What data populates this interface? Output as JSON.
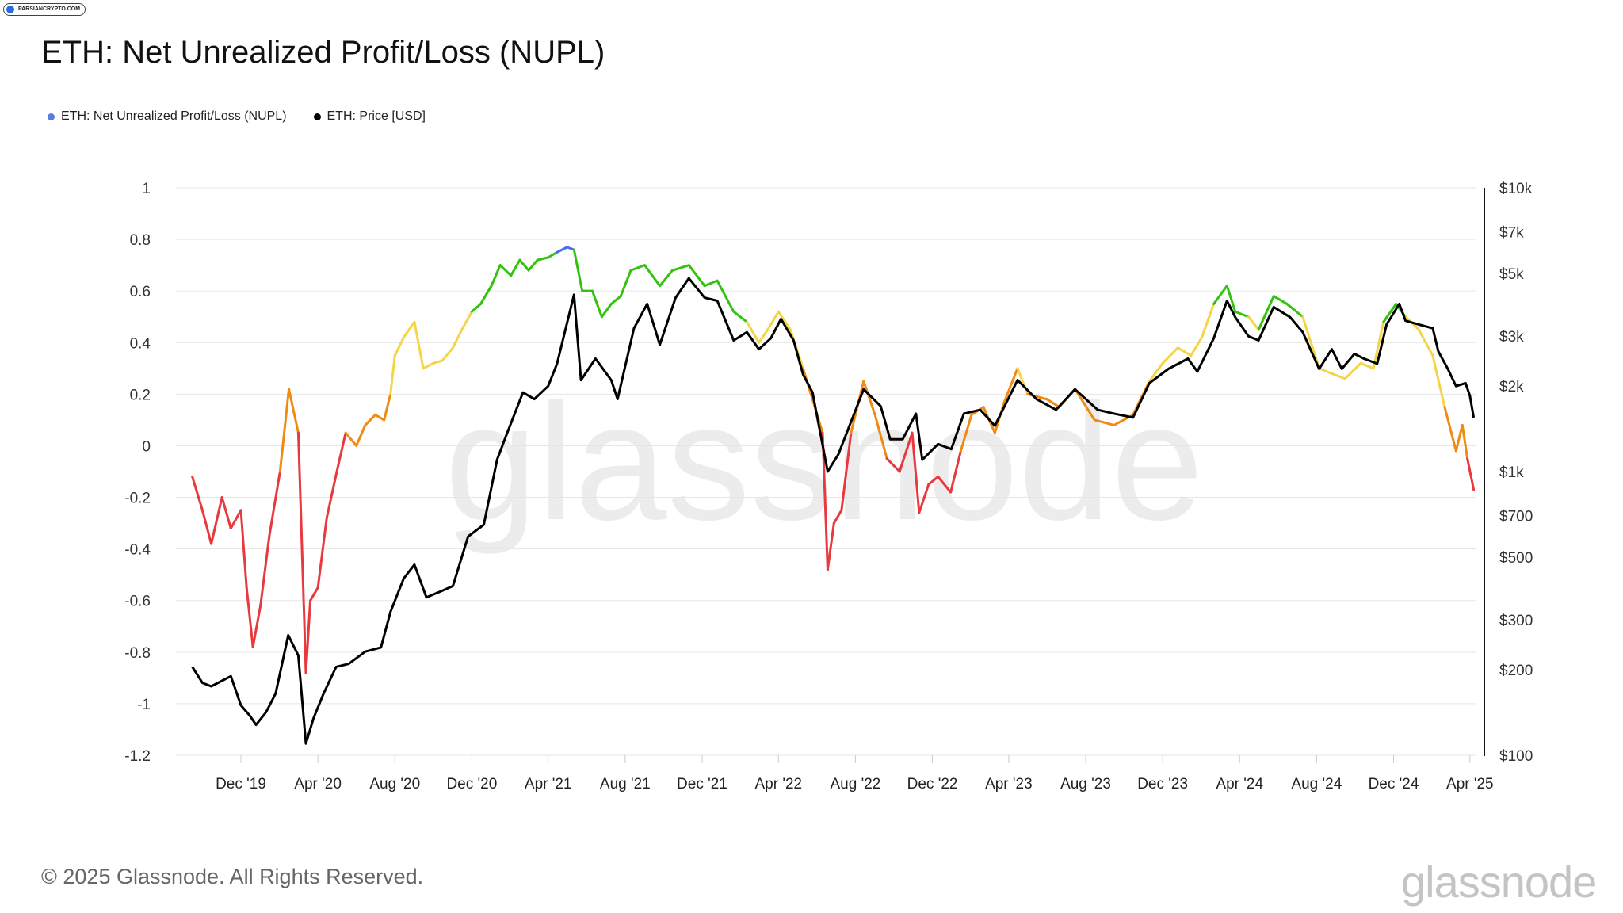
{
  "badge": {
    "label": "PARSIANCRYPTO.COM"
  },
  "title": "ETH: Net Unrealized Profit/Loss (NUPL)",
  "legend": [
    {
      "label": "ETH: Net Unrealized Profit/Loss (NUPL)",
      "color": "#5b7be0"
    },
    {
      "label": "ETH: Price [USD]",
      "color": "#000000"
    }
  ],
  "watermark": "glassnode",
  "footer": {
    "copyright": "© 2025 Glassnode. All Rights Reserved.",
    "logo": "glassnode"
  },
  "colors": {
    "red": "#e8393e",
    "orange": "#f08a12",
    "yellow": "#f5d547",
    "green": "#33c30e",
    "blue": "#4b6fe8",
    "price": "#000000"
  },
  "chart_data": {
    "type": "line",
    "title": "ETH: Net Unrealized Profit/Loss (NUPL)",
    "grid": true,
    "x_ticks": [
      "Dec '19",
      "Apr '20",
      "Aug '20",
      "Dec '20",
      "Apr '21",
      "Aug '21",
      "Dec '21",
      "Apr '22",
      "Aug '22",
      "Dec '22",
      "Apr '23",
      "Aug '23",
      "Dec '23",
      "Apr '24",
      "Aug '24",
      "Dec '24",
      "Apr '25"
    ],
    "y_left": {
      "ticks": [
        "1",
        "0.8",
        "0.6",
        "0.4",
        "0.2",
        "0",
        "-0.2",
        "-0.4",
        "-0.6",
        "-0.8",
        "-1",
        "-1.2"
      ],
      "range": [
        -1.2,
        1
      ]
    },
    "y_right": {
      "scale": "log",
      "ticks": [
        "$10k",
        "$7k",
        "$5k",
        "$3k",
        "$2k",
        "$1k",
        "$700",
        "$500",
        "$300",
        "$200",
        "$100"
      ],
      "range": [
        100,
        10000
      ]
    },
    "series": [
      {
        "name": "ETH: Net Unrealized Profit/Loss (NUPL)",
        "axis": "left",
        "color_bands": [
          {
            "range": [
              -1.2,
              0
            ],
            "color": "red"
          },
          {
            "range": [
              0,
              0.25
            ],
            "color": "orange"
          },
          {
            "range": [
              0.25,
              0.5
            ],
            "color": "yellow"
          },
          {
            "range": [
              0.5,
              0.75
            ],
            "color": "green"
          },
          {
            "range": [
              0.75,
              1
            ],
            "color": "blue"
          }
        ],
        "points": [
          [
            "2019-09-15",
            -0.12
          ],
          [
            "2019-10-01",
            -0.25
          ],
          [
            "2019-10-15",
            -0.38
          ],
          [
            "2019-11-01",
            -0.2
          ],
          [
            "2019-11-15",
            -0.32
          ],
          [
            "2019-12-01",
            -0.25
          ],
          [
            "2019-12-10",
            -0.55
          ],
          [
            "2019-12-20",
            -0.78
          ],
          [
            "2020-01-01",
            -0.62
          ],
          [
            "2020-01-15",
            -0.35
          ],
          [
            "2020-02-01",
            -0.1
          ],
          [
            "2020-02-15",
            0.22
          ],
          [
            "2020-03-01",
            0.05
          ],
          [
            "2020-03-13",
            -0.88
          ],
          [
            "2020-03-20",
            -0.6
          ],
          [
            "2020-04-01",
            -0.55
          ],
          [
            "2020-04-15",
            -0.28
          ],
          [
            "2020-05-01",
            -0.1
          ],
          [
            "2020-05-15",
            0.05
          ],
          [
            "2020-06-01",
            0.0
          ],
          [
            "2020-06-15",
            0.08
          ],
          [
            "2020-07-01",
            0.12
          ],
          [
            "2020-07-15",
            0.1
          ],
          [
            "2020-07-25",
            0.2
          ],
          [
            "2020-08-01",
            0.35
          ],
          [
            "2020-08-15",
            0.42
          ],
          [
            "2020-09-01",
            0.48
          ],
          [
            "2020-09-15",
            0.3
          ],
          [
            "2020-10-01",
            0.32
          ],
          [
            "2020-10-15",
            0.33
          ],
          [
            "2020-11-01",
            0.38
          ],
          [
            "2020-11-15",
            0.45
          ],
          [
            "2020-12-01",
            0.52
          ],
          [
            "2020-12-15",
            0.55
          ],
          [
            "2021-01-01",
            0.62
          ],
          [
            "2021-01-15",
            0.7
          ],
          [
            "2021-02-01",
            0.66
          ],
          [
            "2021-02-15",
            0.72
          ],
          [
            "2021-03-01",
            0.68
          ],
          [
            "2021-03-15",
            0.72
          ],
          [
            "2021-04-01",
            0.73
          ],
          [
            "2021-04-15",
            0.75
          ],
          [
            "2021-05-01",
            0.77
          ],
          [
            "2021-05-12",
            0.76
          ],
          [
            "2021-05-25",
            0.6
          ],
          [
            "2021-06-10",
            0.6
          ],
          [
            "2021-06-25",
            0.5
          ],
          [
            "2021-07-10",
            0.55
          ],
          [
            "2021-07-25",
            0.58
          ],
          [
            "2021-08-10",
            0.68
          ],
          [
            "2021-09-01",
            0.7
          ],
          [
            "2021-09-25",
            0.62
          ],
          [
            "2021-10-15",
            0.68
          ],
          [
            "2021-11-10",
            0.7
          ],
          [
            "2021-12-05",
            0.62
          ],
          [
            "2021-12-25",
            0.64
          ],
          [
            "2022-01-20",
            0.52
          ],
          [
            "2022-02-10",
            0.48
          ],
          [
            "2022-03-01",
            0.4
          ],
          [
            "2022-03-15",
            0.45
          ],
          [
            "2022-04-01",
            0.52
          ],
          [
            "2022-04-20",
            0.45
          ],
          [
            "2022-05-10",
            0.3
          ],
          [
            "2022-05-25",
            0.18
          ],
          [
            "2022-06-10",
            0.05
          ],
          [
            "2022-06-18",
            -0.48
          ],
          [
            "2022-06-28",
            -0.3
          ],
          [
            "2022-07-10",
            -0.25
          ],
          [
            "2022-07-25",
            0.05
          ],
          [
            "2022-08-14",
            0.25
          ],
          [
            "2022-09-01",
            0.12
          ],
          [
            "2022-09-20",
            -0.05
          ],
          [
            "2022-10-10",
            -0.1
          ],
          [
            "2022-10-30",
            0.05
          ],
          [
            "2022-11-10",
            -0.26
          ],
          [
            "2022-11-25",
            -0.15
          ],
          [
            "2022-12-10",
            -0.12
          ],
          [
            "2022-12-30",
            -0.18
          ],
          [
            "2023-01-15",
            -0.02
          ],
          [
            "2023-02-01",
            0.12
          ],
          [
            "2023-02-20",
            0.15
          ],
          [
            "2023-03-10",
            0.05
          ],
          [
            "2023-03-25",
            0.17
          ],
          [
            "2023-04-15",
            0.3
          ],
          [
            "2023-05-01",
            0.2
          ],
          [
            "2023-06-01",
            0.18
          ],
          [
            "2023-06-20",
            0.15
          ],
          [
            "2023-07-15",
            0.22
          ],
          [
            "2023-08-15",
            0.1
          ],
          [
            "2023-09-15",
            0.08
          ],
          [
            "2023-10-15",
            0.12
          ],
          [
            "2023-11-10",
            0.25
          ],
          [
            "2023-12-01",
            0.32
          ],
          [
            "2023-12-25",
            0.38
          ],
          [
            "2024-01-15",
            0.35
          ],
          [
            "2024-02-01",
            0.42
          ],
          [
            "2024-02-20",
            0.55
          ],
          [
            "2024-03-12",
            0.62
          ],
          [
            "2024-03-25",
            0.52
          ],
          [
            "2024-04-15",
            0.5
          ],
          [
            "2024-05-01",
            0.45
          ],
          [
            "2024-05-25",
            0.58
          ],
          [
            "2024-06-15",
            0.55
          ],
          [
            "2024-07-10",
            0.5
          ],
          [
            "2024-08-05",
            0.3
          ],
          [
            "2024-08-25",
            0.28
          ],
          [
            "2024-09-15",
            0.26
          ],
          [
            "2024-10-10",
            0.32
          ],
          [
            "2024-10-30",
            0.3
          ],
          [
            "2024-11-15",
            0.48
          ],
          [
            "2024-12-05",
            0.55
          ],
          [
            "2024-12-20",
            0.5
          ],
          [
            "2025-01-10",
            0.45
          ],
          [
            "2025-02-01",
            0.35
          ],
          [
            "2025-02-20",
            0.15
          ],
          [
            "2025-03-10",
            -0.02
          ],
          [
            "2025-03-20",
            0.08
          ],
          [
            "2025-03-28",
            -0.05
          ],
          [
            "2025-04-07",
            -0.17
          ]
        ]
      },
      {
        "name": "ETH: Price [USD]",
        "axis": "right",
        "color": "#000000",
        "points": [
          [
            "2019-09-15",
            205
          ],
          [
            "2019-10-01",
            180
          ],
          [
            "2019-10-15",
            175
          ],
          [
            "2019-11-01",
            183
          ],
          [
            "2019-11-15",
            190
          ],
          [
            "2019-12-01",
            150
          ],
          [
            "2019-12-15",
            138
          ],
          [
            "2019-12-25",
            128
          ],
          [
            "2020-01-10",
            142
          ],
          [
            "2020-01-25",
            165
          ],
          [
            "2020-02-14",
            265
          ],
          [
            "2020-03-01",
            225
          ],
          [
            "2020-03-13",
            110
          ],
          [
            "2020-03-25",
            135
          ],
          [
            "2020-04-10",
            165
          ],
          [
            "2020-04-30",
            205
          ],
          [
            "2020-05-20",
            210
          ],
          [
            "2020-06-15",
            232
          ],
          [
            "2020-07-10",
            240
          ],
          [
            "2020-07-25",
            320
          ],
          [
            "2020-08-15",
            420
          ],
          [
            "2020-09-01",
            470
          ],
          [
            "2020-09-20",
            360
          ],
          [
            "2020-10-15",
            380
          ],
          [
            "2020-11-01",
            395
          ],
          [
            "2020-11-25",
            590
          ],
          [
            "2020-12-20",
            650
          ],
          [
            "2021-01-10",
            1100
          ],
          [
            "2021-01-25",
            1350
          ],
          [
            "2021-02-20",
            1900
          ],
          [
            "2021-03-10",
            1800
          ],
          [
            "2021-04-01",
            2000
          ],
          [
            "2021-04-15",
            2400
          ],
          [
            "2021-05-12",
            4200
          ],
          [
            "2021-05-23",
            2100
          ],
          [
            "2021-06-15",
            2500
          ],
          [
            "2021-07-10",
            2100
          ],
          [
            "2021-07-20",
            1800
          ],
          [
            "2021-08-15",
            3200
          ],
          [
            "2021-09-05",
            3900
          ],
          [
            "2021-09-25",
            2800
          ],
          [
            "2021-10-20",
            4100
          ],
          [
            "2021-11-10",
            4800
          ],
          [
            "2021-12-05",
            4100
          ],
          [
            "2021-12-25",
            4000
          ],
          [
            "2022-01-20",
            2900
          ],
          [
            "2022-02-10",
            3100
          ],
          [
            "2022-03-01",
            2700
          ],
          [
            "2022-03-20",
            2950
          ],
          [
            "2022-04-05",
            3450
          ],
          [
            "2022-04-25",
            2900
          ],
          [
            "2022-05-10",
            2200
          ],
          [
            "2022-05-25",
            1900
          ],
          [
            "2022-06-18",
            1000
          ],
          [
            "2022-07-05",
            1150
          ],
          [
            "2022-08-14",
            1950
          ],
          [
            "2022-09-10",
            1700
          ],
          [
            "2022-09-25",
            1300
          ],
          [
            "2022-10-15",
            1300
          ],
          [
            "2022-11-05",
            1600
          ],
          [
            "2022-11-15",
            1100
          ],
          [
            "2022-12-10",
            1250
          ],
          [
            "2022-12-31",
            1200
          ],
          [
            "2023-01-20",
            1600
          ],
          [
            "2023-02-15",
            1650
          ],
          [
            "2023-03-10",
            1450
          ],
          [
            "2023-04-15",
            2100
          ],
          [
            "2023-05-15",
            1800
          ],
          [
            "2023-06-15",
            1650
          ],
          [
            "2023-07-15",
            1950
          ],
          [
            "2023-08-20",
            1650
          ],
          [
            "2023-09-15",
            1600
          ],
          [
            "2023-10-15",
            1550
          ],
          [
            "2023-11-10",
            2050
          ],
          [
            "2023-12-10",
            2300
          ],
          [
            "2024-01-10",
            2500
          ],
          [
            "2024-01-25",
            2250
          ],
          [
            "2024-02-20",
            2950
          ],
          [
            "2024-03-12",
            4000
          ],
          [
            "2024-03-25",
            3500
          ],
          [
            "2024-04-15",
            3000
          ],
          [
            "2024-05-01",
            2900
          ],
          [
            "2024-05-25",
            3800
          ],
          [
            "2024-06-20",
            3500
          ],
          [
            "2024-07-10",
            3100
          ],
          [
            "2024-08-05",
            2300
          ],
          [
            "2024-08-25",
            2700
          ],
          [
            "2024-09-10",
            2300
          ],
          [
            "2024-09-30",
            2600
          ],
          [
            "2024-10-15",
            2500
          ],
          [
            "2024-11-05",
            2400
          ],
          [
            "2024-11-20",
            3300
          ],
          [
            "2024-12-10",
            3900
          ],
          [
            "2024-12-20",
            3400
          ],
          [
            "2025-01-10",
            3300
          ],
          [
            "2025-02-01",
            3200
          ],
          [
            "2025-02-10",
            2650
          ],
          [
            "2025-02-25",
            2300
          ],
          [
            "2025-03-10",
            2000
          ],
          [
            "2025-03-25",
            2050
          ],
          [
            "2025-04-01",
            1850
          ],
          [
            "2025-04-07",
            1550
          ]
        ]
      }
    ]
  }
}
